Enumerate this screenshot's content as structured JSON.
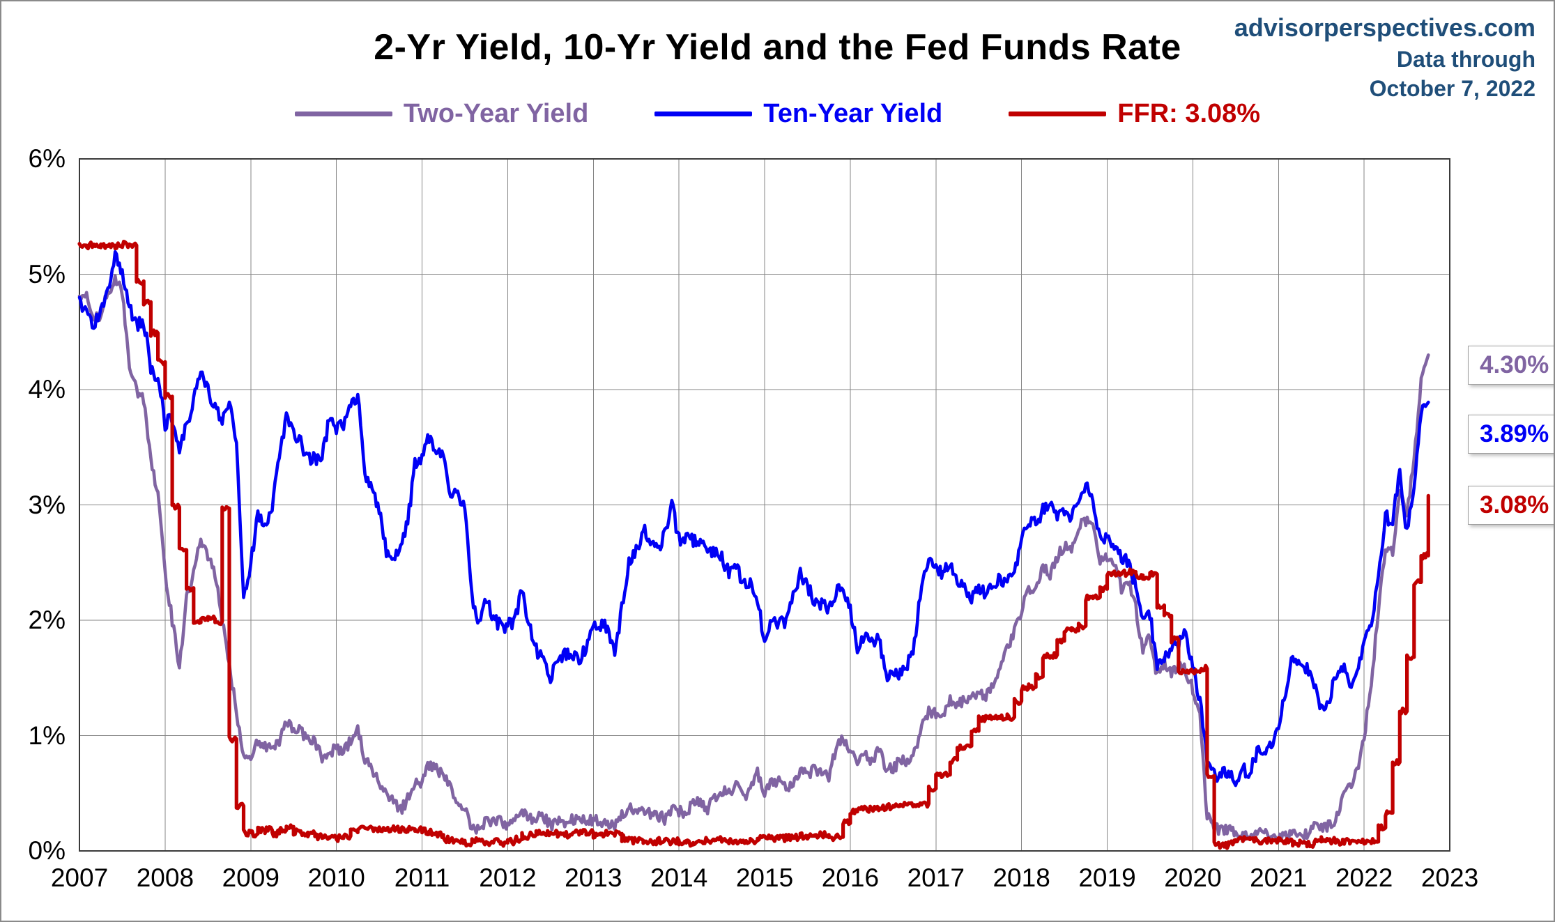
{
  "header": {
    "attribution": {
      "line1": "advisorperspectives.com",
      "line2": "Data through",
      "line3": "October 7, 2022"
    }
  },
  "chart_data": {
    "type": "line",
    "title": "2-Yr Yield, 10-Yr Yield and the Fed Funds Rate",
    "xlabel": "",
    "ylabel": "",
    "xlim": [
      2007,
      2023
    ],
    "ylim": [
      0,
      6
    ],
    "grid": true,
    "legend_position": "top",
    "x_start": 2007,
    "x_step_months": 1,
    "x_ticks": [
      {
        "value": 2007,
        "label": "2007"
      },
      {
        "value": 2008,
        "label": "2008"
      },
      {
        "value": 2009,
        "label": "2009"
      },
      {
        "value": 2010,
        "label": "2010"
      },
      {
        "value": 2011,
        "label": "2011"
      },
      {
        "value": 2012,
        "label": "2012"
      },
      {
        "value": 2013,
        "label": "2013"
      },
      {
        "value": 2014,
        "label": "2014"
      },
      {
        "value": 2015,
        "label": "2015"
      },
      {
        "value": 2016,
        "label": "2016"
      },
      {
        "value": 2017,
        "label": "2017"
      },
      {
        "value": 2018,
        "label": "2018"
      },
      {
        "value": 2019,
        "label": "2019"
      },
      {
        "value": 2020,
        "label": "2020"
      },
      {
        "value": 2021,
        "label": "2021"
      },
      {
        "value": 2022,
        "label": "2022"
      },
      {
        "value": 2023,
        "label": "2023"
      }
    ],
    "y_ticks": [
      {
        "value": 0,
        "label": "0%"
      },
      {
        "value": 1,
        "label": "1%"
      },
      {
        "value": 2,
        "label": "2%"
      },
      {
        "value": 3,
        "label": "3%"
      },
      {
        "value": 4,
        "label": "4%"
      },
      {
        "value": 5,
        "label": "5%"
      },
      {
        "value": 6,
        "label": "6%"
      }
    ],
    "series": [
      {
        "name": "Two-Year Yield",
        "color": "#8064A2",
        "style": "line",
        "jitter": 0.05,
        "end_value": 4.3,
        "end_label": "4.30%",
        "values": [
          4.8,
          4.85,
          4.6,
          4.65,
          4.85,
          4.95,
          4.85,
          4.2,
          4.0,
          3.9,
          3.4,
          3.1,
          2.4,
          2.0,
          1.6,
          2.2,
          2.4,
          2.7,
          2.55,
          2.4,
          2.0,
          1.6,
          1.2,
          0.8,
          0.8,
          0.95,
          0.9,
          0.9,
          0.95,
          1.15,
          1.05,
          1.05,
          0.95,
          0.95,
          0.8,
          0.85,
          0.9,
          0.85,
          0.95,
          1.05,
          0.8,
          0.7,
          0.6,
          0.5,
          0.45,
          0.35,
          0.45,
          0.6,
          0.6,
          0.75,
          0.7,
          0.65,
          0.55,
          0.4,
          0.4,
          0.2,
          0.17,
          0.28,
          0.25,
          0.25,
          0.22,
          0.28,
          0.35,
          0.27,
          0.28,
          0.3,
          0.22,
          0.27,
          0.25,
          0.28,
          0.27,
          0.25,
          0.27,
          0.25,
          0.25,
          0.22,
          0.3,
          0.38,
          0.31,
          0.36,
          0.33,
          0.31,
          0.28,
          0.38,
          0.35,
          0.32,
          0.42,
          0.41,
          0.37,
          0.46,
          0.53,
          0.49,
          0.57,
          0.45,
          0.53,
          0.67,
          0.5,
          0.62,
          0.6,
          0.54,
          0.61,
          0.69,
          0.67,
          0.7,
          0.68,
          0.64,
          0.88,
          0.98,
          0.87,
          0.72,
          0.85,
          0.77,
          0.88,
          0.73,
          0.7,
          0.8,
          0.77,
          0.84,
          1.1,
          1.2,
          1.2,
          1.2,
          1.3,
          1.27,
          1.3,
          1.38,
          1.36,
          1.33,
          1.45,
          1.55,
          1.75,
          1.89,
          2.1,
          2.25,
          2.27,
          2.48,
          2.4,
          2.55,
          2.65,
          2.63,
          2.82,
          2.87,
          2.8,
          2.5,
          2.55,
          2.5,
          2.27,
          2.35,
          2.1,
          1.75,
          1.85,
          1.5,
          1.65,
          1.55,
          1.6,
          1.57,
          1.4,
          1.2,
          0.3,
          0.2,
          0.17,
          0.19,
          0.14,
          0.14,
          0.13,
          0.15,
          0.16,
          0.13,
          0.12,
          0.12,
          0.15,
          0.16,
          0.15,
          0.22,
          0.2,
          0.22,
          0.27,
          0.45,
          0.55,
          0.7,
          1.0,
          1.45,
          2.1,
          2.6,
          2.6,
          3.1,
          2.9,
          3.4,
          4.1,
          4.3
        ]
      },
      {
        "name": "Ten-Year Yield",
        "color": "#0000F5",
        "style": "line",
        "jitter": 0.06,
        "end_value": 3.89,
        "end_label": "3.89%",
        "values": [
          4.75,
          4.7,
          4.55,
          4.7,
          4.85,
          5.15,
          5.0,
          4.7,
          4.55,
          4.6,
          4.2,
          4.1,
          3.7,
          3.75,
          3.5,
          3.7,
          3.9,
          4.2,
          4.0,
          3.85,
          3.7,
          3.9,
          3.5,
          2.2,
          2.5,
          2.9,
          2.8,
          3.0,
          3.45,
          3.75,
          3.6,
          3.55,
          3.4,
          3.4,
          3.4,
          3.75,
          3.65,
          3.7,
          3.85,
          3.95,
          3.3,
          3.1,
          2.95,
          2.6,
          2.55,
          2.6,
          2.85,
          3.35,
          3.4,
          3.6,
          3.45,
          3.45,
          3.1,
          3.1,
          2.95,
          2.2,
          1.95,
          2.2,
          2.0,
          1.95,
          1.95,
          2.0,
          2.25,
          1.95,
          1.75,
          1.65,
          1.5,
          1.65,
          1.7,
          1.7,
          1.65,
          1.75,
          1.95,
          1.95,
          1.95,
          1.7,
          2.1,
          2.5,
          2.6,
          2.8,
          2.65,
          2.6,
          2.75,
          3.0,
          2.7,
          2.7,
          2.7,
          2.7,
          2.55,
          2.6,
          2.55,
          2.4,
          2.5,
          2.3,
          2.3,
          2.2,
          1.8,
          2.0,
          1.95,
          2.0,
          2.2,
          2.4,
          2.3,
          2.15,
          2.15,
          2.1,
          2.25,
          2.25,
          2.1,
          1.75,
          1.85,
          1.8,
          1.85,
          1.5,
          1.5,
          1.55,
          1.6,
          1.8,
          2.3,
          2.5,
          2.45,
          2.4,
          2.5,
          2.3,
          2.3,
          2.2,
          2.3,
          2.2,
          2.3,
          2.35,
          2.35,
          2.4,
          2.7,
          2.85,
          2.85,
          2.95,
          3.0,
          2.9,
          2.95,
          2.9,
          3.05,
          3.2,
          3.05,
          2.7,
          2.7,
          2.65,
          2.55,
          2.5,
          2.3,
          2.05,
          2.05,
          1.6,
          1.7,
          1.75,
          1.8,
          1.9,
          1.6,
          1.3,
          0.8,
          0.65,
          0.68,
          0.7,
          0.6,
          0.7,
          0.68,
          0.85,
          0.85,
          0.93,
          1.1,
          1.4,
          1.7,
          1.6,
          1.6,
          1.45,
          1.25,
          1.3,
          1.5,
          1.6,
          1.45,
          1.5,
          1.8,
          1.95,
          2.35,
          2.9,
          2.85,
          3.3,
          2.75,
          3.2,
          3.8,
          3.89
        ]
      },
      {
        "name": "FFR: 3.08%",
        "color": "#C00000",
        "style": "step",
        "jitter": 0.028,
        "end_value": 3.08,
        "end_label": "3.08%",
        "values": [
          5.25,
          5.25,
          5.26,
          5.25,
          5.25,
          5.25,
          5.26,
          5.25,
          4.94,
          4.76,
          4.49,
          4.24,
          3.94,
          2.98,
          2.61,
          2.28,
          1.98,
          2.0,
          2.01,
          1.99,
          2.97,
          0.97,
          0.39,
          0.16,
          0.15,
          0.18,
          0.18,
          0.15,
          0.18,
          0.21,
          0.16,
          0.16,
          0.15,
          0.12,
          0.12,
          0.12,
          0.11,
          0.13,
          0.16,
          0.2,
          0.2,
          0.18,
          0.18,
          0.19,
          0.19,
          0.19,
          0.19,
          0.18,
          0.17,
          0.16,
          0.14,
          0.1,
          0.09,
          0.09,
          0.07,
          0.1,
          0.08,
          0.07,
          0.08,
          0.07,
          0.08,
          0.1,
          0.13,
          0.14,
          0.16,
          0.16,
          0.16,
          0.13,
          0.14,
          0.16,
          0.16,
          0.16,
          0.14,
          0.15,
          0.14,
          0.15,
          0.11,
          0.09,
          0.09,
          0.08,
          0.08,
          0.09,
          0.08,
          0.09,
          0.07,
          0.07,
          0.08,
          0.09,
          0.09,
          0.1,
          0.09,
          0.09,
          0.09,
          0.09,
          0.09,
          0.12,
          0.11,
          0.11,
          0.11,
          0.12,
          0.12,
          0.13,
          0.13,
          0.14,
          0.14,
          0.12,
          0.12,
          0.24,
          0.34,
          0.38,
          0.36,
          0.37,
          0.37,
          0.38,
          0.39,
          0.4,
          0.4,
          0.4,
          0.41,
          0.54,
          0.65,
          0.66,
          0.79,
          0.9,
          0.91,
          1.04,
          1.15,
          1.16,
          1.15,
          1.15,
          1.16,
          1.3,
          1.41,
          1.42,
          1.51,
          1.69,
          1.7,
          1.82,
          1.91,
          1.91,
          1.95,
          2.19,
          2.2,
          2.27,
          2.4,
          2.4,
          2.41,
          2.42,
          2.39,
          2.38,
          2.4,
          2.13,
          2.04,
          1.83,
          1.55,
          1.55,
          1.55,
          1.58,
          0.65,
          0.05,
          0.05,
          0.08,
          0.09,
          0.1,
          0.09,
          0.09,
          0.09,
          0.09,
          0.09,
          0.08,
          0.07,
          0.07,
          0.06,
          0.08,
          0.1,
          0.09,
          0.08,
          0.08,
          0.08,
          0.08,
          0.08,
          0.08,
          0.2,
          0.33,
          0.77,
          1.21,
          1.68,
          2.33,
          2.56,
          3.08
        ]
      }
    ]
  }
}
